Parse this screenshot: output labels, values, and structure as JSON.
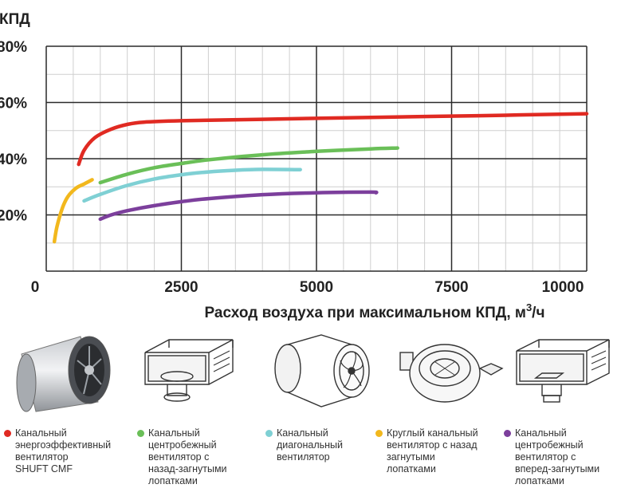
{
  "chart_data": {
    "type": "line",
    "ylabel": "КПД",
    "xlabel_main": "Расход воздуха при максимальном КПД, м",
    "xlabel_sup": "3",
    "xlabel_tail": "/ч",
    "xlim": [
      0,
      10000
    ],
    "ylim": [
      0,
      80
    ],
    "x_ticks": [
      "0",
      "2500",
      "5000",
      "7500",
      "10000"
    ],
    "y_ticks": [
      "20%",
      "40%",
      "60%",
      "80%"
    ],
    "grid": true,
    "series": [
      {
        "name": "Канальный энергоэффективный вентилятор SHUFT CMF",
        "color": "#e02a22",
        "x": [
          600,
          700,
          900,
          1200,
          1500,
          1800,
          2500,
          4000,
          6000,
          8000,
          10000
        ],
        "y": [
          38,
          43,
          47.5,
          50.5,
          52.2,
          53,
          53.5,
          54,
          54.7,
          55.3,
          56
        ]
      },
      {
        "name": "Канальный центробежный вентилятор с назад-загнутыми лопатками",
        "color": "#6abf58",
        "x": [
          1000,
          1500,
          2000,
          2500,
          3000,
          4000,
          5000,
          6000,
          6500
        ],
        "y": [
          31.5,
          34.5,
          36.8,
          38.3,
          39.6,
          41.4,
          42.6,
          43.5,
          43.8
        ]
      },
      {
        "name": "Канальный диагональный вентилятор",
        "color": "#7fd0d4",
        "x": [
          700,
          1000,
          1500,
          2000,
          2500,
          3000,
          3500,
          4000,
          4700
        ],
        "y": [
          25,
          27.3,
          30.5,
          32.8,
          34.3,
          35.3,
          35.9,
          36.2,
          36.1
        ]
      },
      {
        "name": "Круглый канальный вентилятор с назад загнутыми лопатками",
        "color": "#f2b81d",
        "x": [
          150,
          200,
          300,
          400,
          550,
          700,
          850
        ],
        "y": [
          10.5,
          16,
          22.5,
          26.5,
          29.5,
          31,
          32.5
        ]
      },
      {
        "name": "Канальный центробежный вентилятор с вперед-загнутыми лопатками",
        "color": "#7c3f9c",
        "x": [
          1000,
          1200,
          1500,
          2000,
          2500,
          3000,
          4000,
          5000,
          6000,
          6100
        ],
        "y": [
          18.5,
          20,
          21.5,
          23.3,
          24.7,
          25.8,
          27.2,
          27.9,
          28.1,
          27.9
        ]
      }
    ]
  },
  "legend": [
    {
      "text": "Канальный\nэнергоэффективный\nвентилятор\nSHUFT CMF",
      "color": "#e02a22"
    },
    {
      "text": "Канальный\nцентробежный\nвентилятор с\nназад-загнутыми\nлопатками",
      "color": "#6abf58"
    },
    {
      "text": "Канальный\nдиагональный\nвентилятор",
      "color": "#7fd0d4"
    },
    {
      "text": "Круглый канальный\nвентилятор с назад\nзагнутыми\nлопатками",
      "color": "#f2b81d"
    },
    {
      "text": "Канальный\nцентробежный\nвентилятор с\nвперед-загнутыми\nлопатками",
      "color": "#7c3f9c"
    }
  ],
  "product_images": [
    {
      "icon": "shuft-cmf-fan-image"
    },
    {
      "icon": "rectangular-duct-fan-backward-image"
    },
    {
      "icon": "diagonal-duct-fan-image"
    },
    {
      "icon": "round-duct-fan-image"
    },
    {
      "icon": "rectangular-duct-fan-forward-image"
    }
  ]
}
